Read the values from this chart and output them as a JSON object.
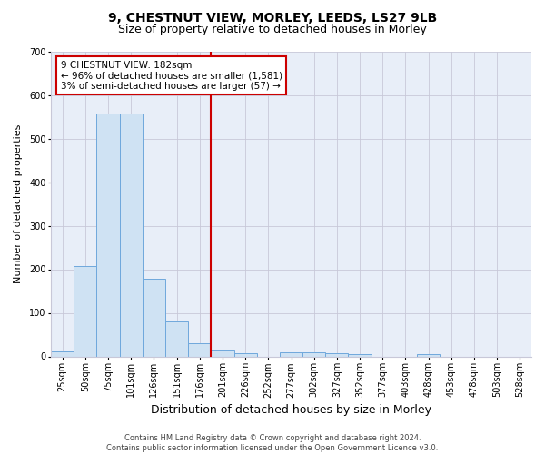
{
  "title1": "9, CHESTNUT VIEW, MORLEY, LEEDS, LS27 9LB",
  "title2": "Size of property relative to detached houses in Morley",
  "xlabel": "Distribution of detached houses by size in Morley",
  "ylabel": "Number of detached properties",
  "footer": "Contains HM Land Registry data © Crown copyright and database right 2024.\nContains public sector information licensed under the Open Government Licence v3.0.",
  "bin_labels": [
    "25sqm",
    "50sqm",
    "75sqm",
    "101sqm",
    "126sqm",
    "151sqm",
    "176sqm",
    "201sqm",
    "226sqm",
    "252sqm",
    "277sqm",
    "302sqm",
    "327sqm",
    "352sqm",
    "377sqm",
    "403sqm",
    "428sqm",
    "453sqm",
    "478sqm",
    "503sqm",
    "528sqm"
  ],
  "bin_values": [
    11,
    207,
    557,
    557,
    178,
    80,
    30,
    13,
    8,
    0,
    10,
    10,
    8,
    5,
    0,
    0,
    5,
    0,
    0,
    0,
    0
  ],
  "bar_color": "#cfe2f3",
  "bar_edge_color": "#6fa8dc",
  "vline_color": "#cc0000",
  "annotation_text": "9 CHESTNUT VIEW: 182sqm\n← 96% of detached houses are smaller (1,581)\n3% of semi-detached houses are larger (57) →",
  "annotation_box_color": "#ffffff",
  "annotation_box_edge_color": "#cc0000",
  "ylim": [
    0,
    700
  ],
  "yticks": [
    0,
    100,
    200,
    300,
    400,
    500,
    600,
    700
  ],
  "bg_color": "#ffffff",
  "axes_bg_color": "#e8eef8",
  "grid_color": "#c8c8d8",
  "title1_fontsize": 10,
  "title2_fontsize": 9,
  "xlabel_fontsize": 9,
  "ylabel_fontsize": 8,
  "tick_fontsize": 7,
  "annotation_fontsize": 7.5,
  "footer_fontsize": 6
}
